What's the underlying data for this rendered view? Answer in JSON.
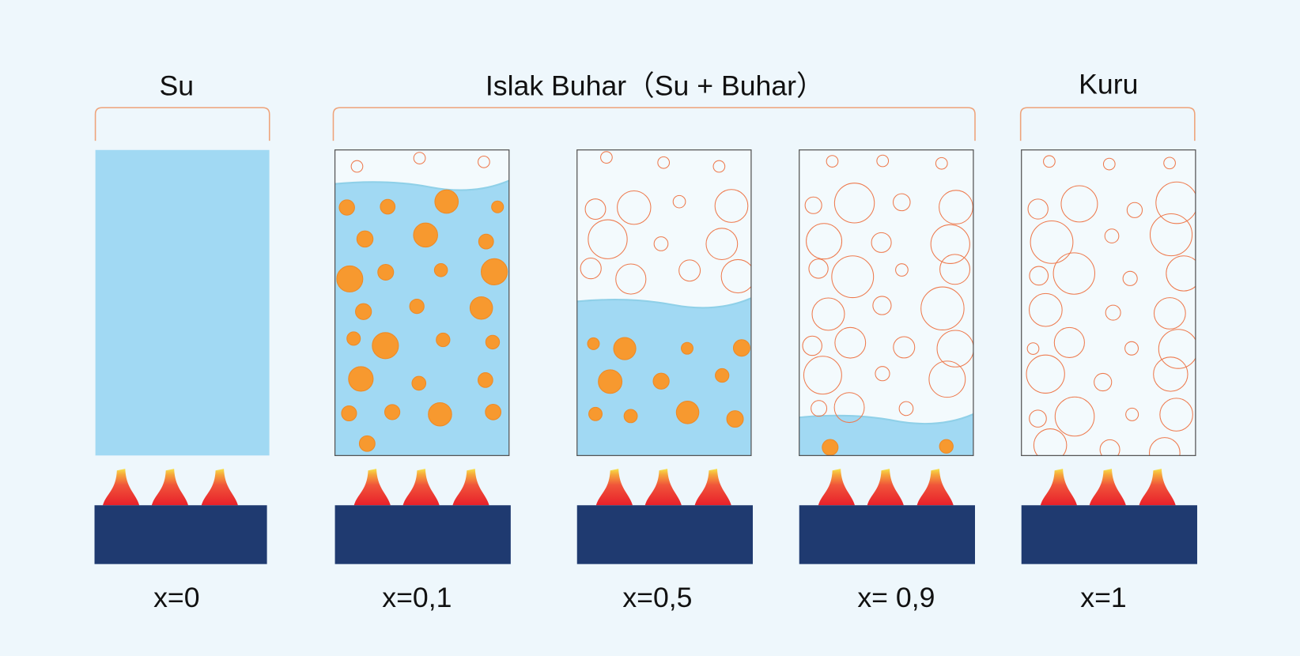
{
  "groups": [
    {
      "title": "Su"
    },
    {
      "title": "Islak Buhar（Su + Buhar）"
    },
    {
      "title": "Kuru"
    }
  ],
  "containers": [
    {
      "label": "x=0"
    },
    {
      "label": "x=0,1"
    },
    {
      "label": "x=0,5"
    },
    {
      "label": "x= 0,9"
    },
    {
      "label": "x=1"
    }
  ]
}
